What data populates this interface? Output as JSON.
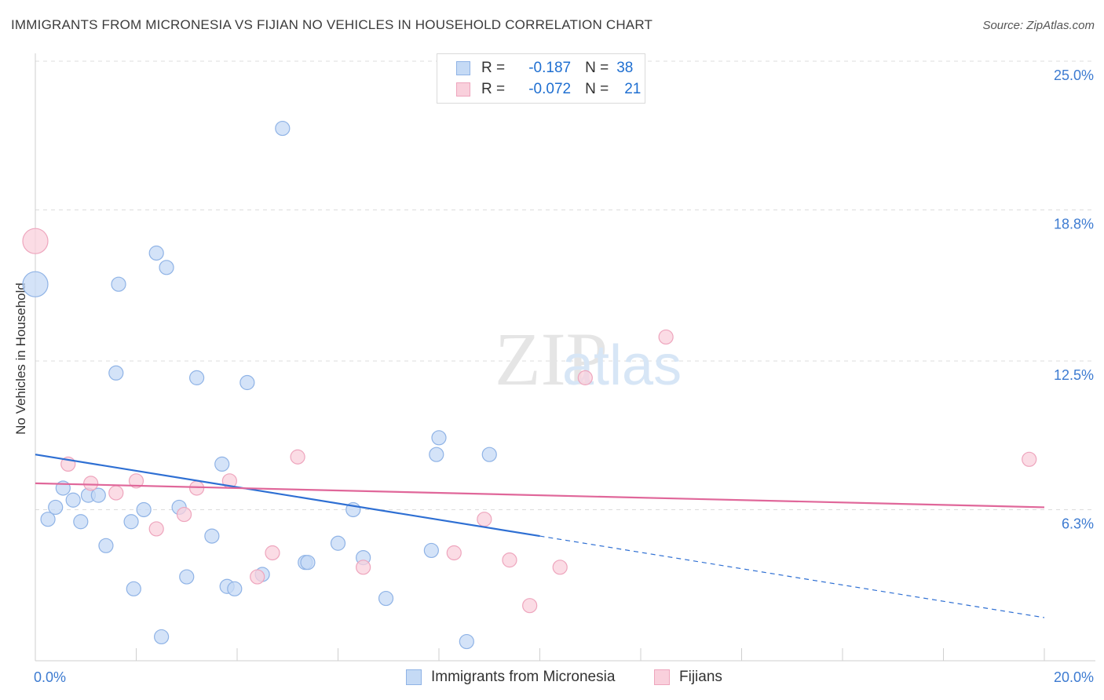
{
  "title": "IMMIGRANTS FROM MICRONESIA VS FIJIAN NO VEHICLES IN HOUSEHOLD CORRELATION CHART",
  "source": "Source: ZipAtlas.com",
  "watermark": {
    "zip": "ZIP",
    "atlas": "atlas"
  },
  "legend": {
    "rows": [
      {
        "r_label": "R =",
        "r_value": "-0.187",
        "n_label": "N =",
        "n_value": "38",
        "color": "#a9c8f0"
      },
      {
        "r_label": "R =",
        "r_value": "-0.072",
        "n_label": "N =",
        "n_value": "21",
        "color": "#f5b8cb"
      }
    ]
  },
  "colors": {
    "blue_fill": "#c5daf5",
    "blue_stroke": "#8fb3e6",
    "blue_line": "#2e6fd3",
    "pink_fill": "#f9d0dc",
    "pink_stroke": "#eea5bd",
    "pink_line": "#e0679a",
    "tick_text": "#3d7bd1"
  },
  "chart_data": {
    "type": "scatter",
    "ylabel": "No Vehicles in Household",
    "xlim": [
      0,
      20
    ],
    "ylim": [
      0,
      25
    ],
    "x_tick_labels": [
      "0.0%",
      "20.0%"
    ],
    "y_ticks": [
      6.3,
      12.5,
      18.8,
      25.0
    ],
    "y_tick_labels": [
      "6.3%",
      "12.5%",
      "18.8%",
      "25.0%"
    ],
    "grid": true,
    "series": [
      {
        "name": "Immigrants from Micronesia",
        "points": [
          [
            0.0,
            15.7,
            16
          ],
          [
            0.25,
            5.9,
            9
          ],
          [
            0.4,
            6.4,
            9
          ],
          [
            0.55,
            7.2,
            9
          ],
          [
            0.75,
            6.7,
            9
          ],
          [
            0.9,
            5.8,
            9
          ],
          [
            1.05,
            6.9,
            9
          ],
          [
            1.25,
            6.9,
            9
          ],
          [
            1.4,
            4.8,
            9
          ],
          [
            1.6,
            12.0,
            9
          ],
          [
            1.65,
            15.7,
            9
          ],
          [
            1.9,
            5.8,
            9
          ],
          [
            1.95,
            3.0,
            9
          ],
          [
            2.15,
            6.3,
            9
          ],
          [
            2.4,
            17.0,
            9
          ],
          [
            2.5,
            1.0,
            9
          ],
          [
            2.6,
            16.4,
            9
          ],
          [
            2.85,
            6.4,
            9
          ],
          [
            3.0,
            3.5,
            9
          ],
          [
            3.2,
            11.8,
            9
          ],
          [
            3.5,
            5.2,
            9
          ],
          [
            3.7,
            8.2,
            9
          ],
          [
            3.8,
            3.1,
            9
          ],
          [
            3.95,
            3.0,
            9
          ],
          [
            4.2,
            11.6,
            9
          ],
          [
            4.5,
            3.6,
            9
          ],
          [
            4.9,
            22.2,
            9
          ],
          [
            5.35,
            4.1,
            9
          ],
          [
            5.4,
            4.1,
            9
          ],
          [
            6.0,
            4.9,
            9
          ],
          [
            6.3,
            6.3,
            9
          ],
          [
            6.5,
            4.3,
            9
          ],
          [
            6.95,
            2.6,
            9
          ],
          [
            7.85,
            4.6,
            9
          ],
          [
            7.95,
            8.6,
            9
          ],
          [
            8.0,
            9.3,
            9
          ],
          [
            8.55,
            0.8,
            9
          ],
          [
            9.0,
            8.6,
            9
          ]
        ]
      },
      {
        "name": "Fijians",
        "points": [
          [
            0.0,
            17.5,
            16
          ],
          [
            0.65,
            8.2,
            9
          ],
          [
            1.1,
            7.4,
            9
          ],
          [
            1.6,
            7.0,
            9
          ],
          [
            2.0,
            7.5,
            9
          ],
          [
            2.4,
            5.5,
            9
          ],
          [
            2.95,
            6.1,
            9
          ],
          [
            3.2,
            7.2,
            9
          ],
          [
            3.85,
            7.5,
            9
          ],
          [
            4.4,
            3.5,
            9
          ],
          [
            4.7,
            4.5,
            9
          ],
          [
            5.2,
            8.5,
            9
          ],
          [
            6.5,
            3.9,
            9
          ],
          [
            8.3,
            4.5,
            9
          ],
          [
            8.9,
            5.9,
            9
          ],
          [
            9.4,
            4.2,
            9
          ],
          [
            9.8,
            2.3,
            9
          ],
          [
            10.4,
            3.9,
            9
          ],
          [
            10.9,
            11.8,
            9
          ],
          [
            12.5,
            13.5,
            9
          ],
          [
            19.7,
            8.4,
            9
          ]
        ]
      }
    ],
    "trendlines": [
      {
        "series": "Immigrants from Micronesia",
        "x1": 0,
        "y1": 8.6,
        "x2": 10,
        "y2": 5.2,
        "dashed_to_x": 20,
        "dashed_to_y": 1.8
      },
      {
        "series": "Fijians",
        "x1": 0,
        "y1": 7.4,
        "x2": 20,
        "y2": 6.4
      }
    ]
  },
  "bottom_legend": [
    {
      "label": "Immigrants from Micronesia"
    },
    {
      "label": "Fijians"
    }
  ]
}
